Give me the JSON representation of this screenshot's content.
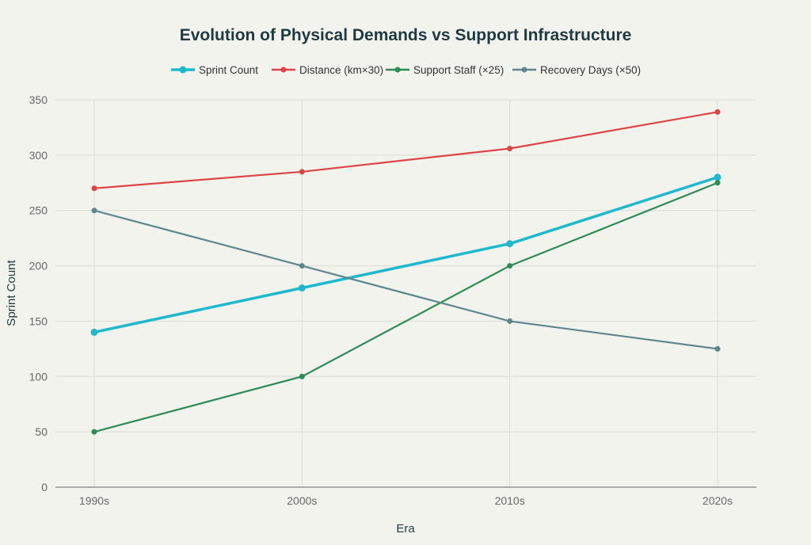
{
  "chart_data": {
    "type": "line",
    "title": "Evolution of Physical Demands vs Support Infrastructure",
    "xlabel": "Era",
    "ylabel": "Sprint Count",
    "categories": [
      "1990s",
      "2000s",
      "2010s",
      "2020s"
    ],
    "ylim": [
      0,
      350
    ],
    "yticks": [
      0,
      50,
      100,
      150,
      200,
      250,
      300,
      350
    ],
    "grid": true,
    "legend_position": "top",
    "series": [
      {
        "name": "Sprint Count",
        "color": "#1FB8CD",
        "values": [
          140,
          180,
          220,
          280
        ]
      },
      {
        "name": "Distance (km×30)",
        "color": "#DB4545",
        "values": [
          270,
          285,
          306,
          339
        ]
      },
      {
        "name": "Support Staff (×25)",
        "color": "#2E8B57",
        "values": [
          50,
          100,
          200,
          275
        ]
      },
      {
        "name": "Recovery Days (×50)",
        "color": "#5D878F",
        "values": [
          250,
          200,
          150,
          125
        ]
      }
    ]
  }
}
